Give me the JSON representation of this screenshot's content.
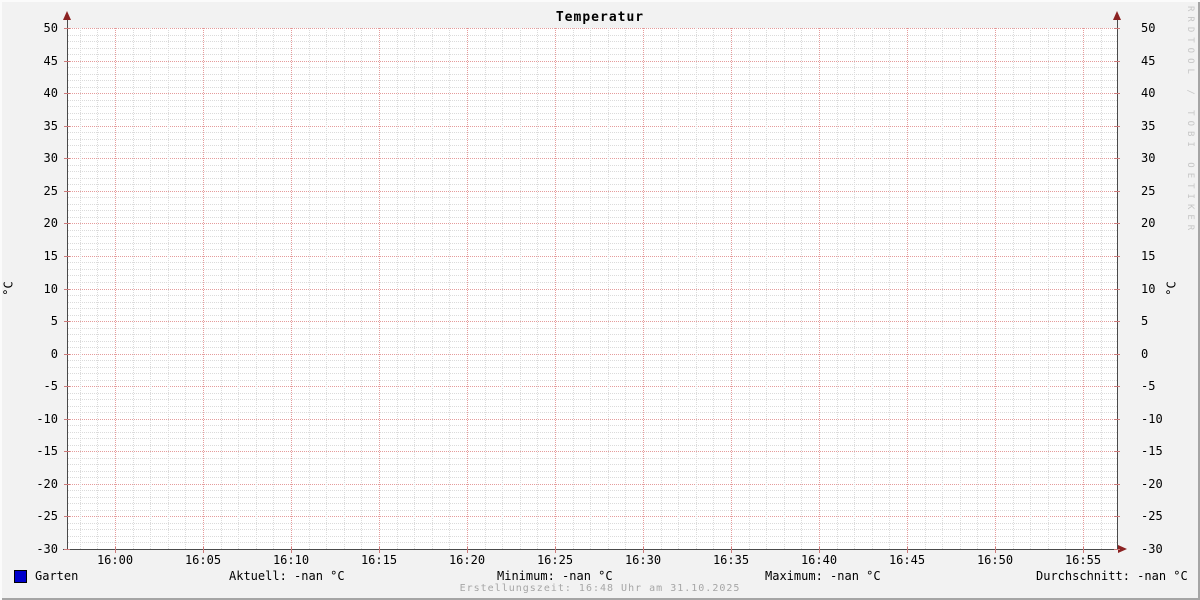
{
  "title": "Temperatur",
  "watermark": "RRDTOOL / TOBI OETIKER",
  "footer": "Erstellungszeit: 16:48 Uhr am 31.10.2025",
  "legend": {
    "series_label": "Garten",
    "series_color": "#0000cc",
    "stats": [
      {
        "name": "Aktuell",
        "label": "Aktuell: -nan °C"
      },
      {
        "name": "Minimum",
        "label": "Minimum: -nan °C"
      },
      {
        "name": "Maximum",
        "label": "Maximum: -nan °C"
      },
      {
        "name": "Durchschnitt",
        "label": "Durchschnitt: -nan °C"
      }
    ]
  },
  "chart_data": {
    "type": "line",
    "title": "Temperatur",
    "ylabel": "°C",
    "ylabel_right": "°C",
    "ylim": [
      -30,
      50
    ],
    "y_major_step": 5,
    "y_minor_step": 1,
    "y_tick_labels": [
      50,
      45,
      40,
      35,
      30,
      25,
      20,
      15,
      10,
      5,
      0,
      -5,
      -10,
      -15,
      -20,
      -25,
      -30
    ],
    "x_tick_labels": [
      "16:00",
      "16:05",
      "16:10",
      "16:15",
      "16:20",
      "16:25",
      "16:30",
      "16:35",
      "16:40",
      "16:45",
      "16:50",
      "16:55"
    ],
    "x_major_step_minutes": 5,
    "x_minor_step_minutes": 1,
    "grid": true,
    "legend_position": "bottom",
    "series": [
      {
        "name": "Garten",
        "color": "#0000cc",
        "values": [],
        "aktuell": "-nan °C",
        "minimum": "-nan °C",
        "maximum": "-nan °C",
        "durchschnitt": "-nan °C"
      }
    ],
    "colors": {
      "background": "#f2f2f2",
      "canvas": "#ffffff",
      "major_grid": "#e59c9c",
      "minor_grid": "#dbdbdb",
      "axis": "#4a4a4a",
      "arrow": "#8b2222"
    }
  }
}
